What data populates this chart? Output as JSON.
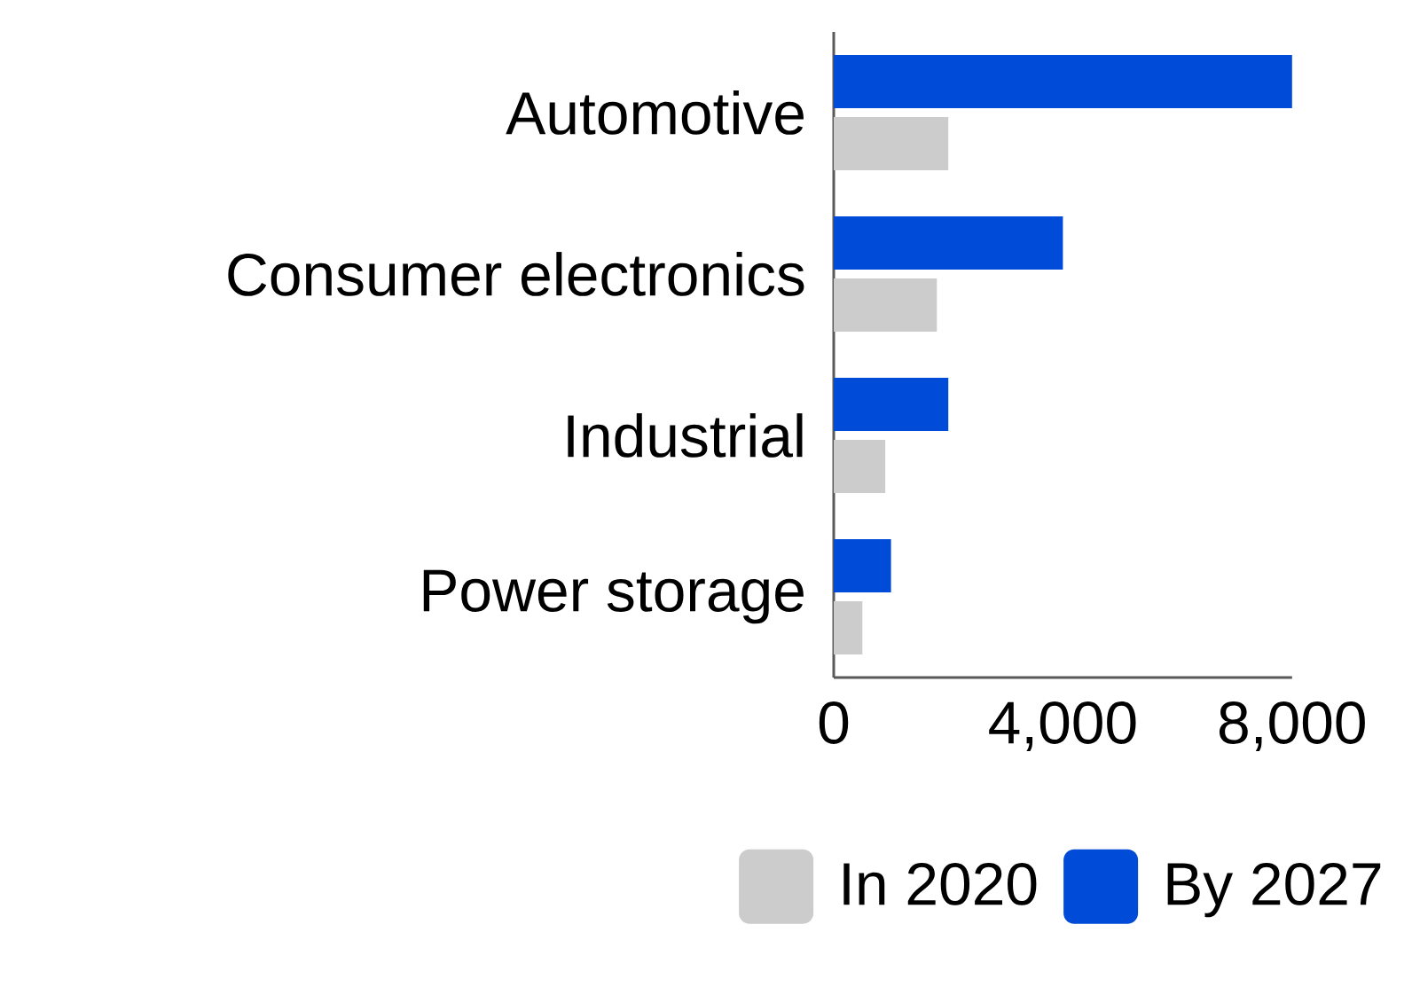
{
  "chart_data": {
    "type": "bar",
    "orientation": "horizontal",
    "categories": [
      "Automotive",
      "Consumer electronics",
      "Industrial",
      "Power storage"
    ],
    "series": [
      {
        "name": "In 2020",
        "color": "#cccccc",
        "values": [
          2000,
          1800,
          900,
          500
        ]
      },
      {
        "name": "By 2027",
        "color": "#004cd8",
        "values": [
          8000,
          4000,
          2000,
          1000
        ]
      }
    ],
    "xlim": [
      0,
      8000
    ],
    "xticks": [
      0,
      {
        "value": 4000,
        "label": "4,000"
      },
      {
        "value": 8000,
        "label": "8,000"
      }
    ],
    "grid": false,
    "legend": "bottom"
  }
}
